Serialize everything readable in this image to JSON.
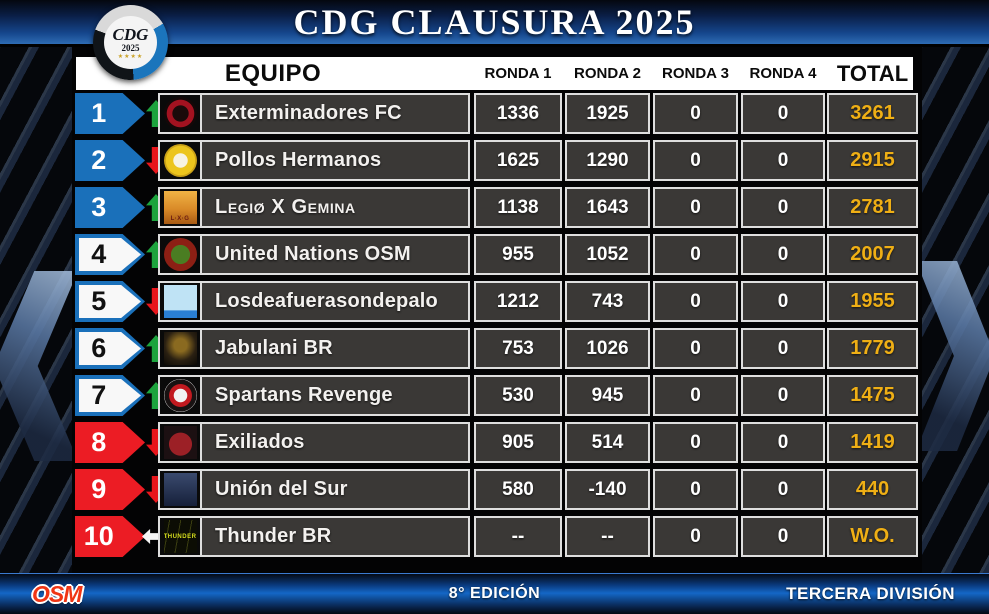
{
  "title": "CDG CLAUSURA 2025",
  "logo": {
    "acronym": "CDG",
    "year": "2025",
    "stars": "★★★★"
  },
  "columns": {
    "equipo": "EQUIPO",
    "ronda1": "RONDA 1",
    "ronda2": "RONDA 2",
    "ronda3": "RONDA 3",
    "ronda4": "RONDA 4",
    "total": "TOTAL"
  },
  "teams": [
    {
      "rank": "1",
      "badge": "badge blue",
      "arrow": "arrow up",
      "name": "Exterminadores FC",
      "name_style": "",
      "logo_style": "background:radial-gradient(circle, #1a0a0a 0 34%, #a31220 36% 58%, #140808 60%);border-radius:50%",
      "logo_text": "",
      "r1": "1336",
      "r2": "1925",
      "r3": "0",
      "r4": "0",
      "total": "3261"
    },
    {
      "rank": "2",
      "badge": "badge blue",
      "arrow": "arrow down",
      "name": "Pollos Hermanos",
      "name_style": "",
      "logo_style": "background:radial-gradient(circle, #f7f3e2 0 30%, #ecc51d 32% 62%, #caa117 64% 76%, #17120a 78%);border-radius:50%",
      "logo_text": "",
      "r1": "1625",
      "r2": "1290",
      "r3": "0",
      "r4": "0",
      "total": "2915"
    },
    {
      "rank": "3",
      "badge": "badge blue",
      "arrow": "arrow up",
      "name": "Legiø X Gemina",
      "name_style": "font-variant:small-caps;letter-spacing:.6px",
      "logo_style": "background:linear-gradient(180deg, #f0b345 0%, #d98a28 55%, #a85a14 100%);color:#6b1a10;align-items:flex-end;padding-bottom:2px",
      "logo_text": "L·X·G",
      "r1": "1138",
      "r2": "1643",
      "r3": "0",
      "r4": "0",
      "total": "2781"
    },
    {
      "rank": "4",
      "badge": "badge white",
      "arrow": "arrow up",
      "name": "United Nations OSM",
      "name_style": "",
      "logo_style": "background:radial-gradient(circle, #4a7d22 0 40%, #8c1f14 42% 86%, #0d0d0d 88%);border-radius:50%",
      "logo_text": "",
      "r1": "955",
      "r2": "1052",
      "r3": "0",
      "r4": "0",
      "total": "2007"
    },
    {
      "rank": "5",
      "badge": "badge white",
      "arrow": "arrow down",
      "name": "Losdeafuerasondepalo",
      "name_style": "",
      "logo_style": "background:linear-gradient(180deg, #bfe3f5 0 76%, #2a7fd4 78%);color:#1a3c6e",
      "logo_text": "",
      "r1": "1212",
      "r2": "743",
      "r3": "0",
      "r4": "0",
      "total": "1955"
    },
    {
      "rank": "6",
      "badge": "badge white",
      "arrow": "arrow up",
      "name": "Jabulani BR",
      "name_style": "",
      "logo_style": "background:radial-gradient(circle at 50% 40%, #8a6a20 0 25%, #2a2012 60%, #0b0906 100%)",
      "logo_text": "",
      "r1": "753",
      "r2": "1026",
      "r3": "0",
      "r4": "0",
      "total": "1779"
    },
    {
      "rank": "7",
      "badge": "badge white",
      "arrow": "arrow up",
      "name": "Spartans Revenge",
      "name_style": "",
      "logo_style": "background:radial-gradient(circle, #f2f2f2 0 28%, #c2191f 30% 48%, #181212 50% 68%, #f0f0f0 70% 80%, #101010 82%);border-radius:50%",
      "logo_text": "",
      "r1": "530",
      "r2": "945",
      "r3": "0",
      "r4": "0",
      "total": "1475"
    },
    {
      "rank": "8",
      "badge": "badge red",
      "arrow": "arrow down",
      "name": "Exiliados",
      "name_style": "",
      "logo_style": "background:radial-gradient(circle at 50% 55%, #9c2026 0 46%, #1c1012 48%)",
      "logo_text": "",
      "r1": "905",
      "r2": "514",
      "r3": "0",
      "r4": "0",
      "total": "1419"
    },
    {
      "rank": "9",
      "badge": "badge red",
      "arrow": "arrow down",
      "name": "Unión del Sur",
      "name_style": "",
      "logo_style": "background:linear-gradient(180deg,#3a4a6e 0%,#16203a 100%);color:#cfd8ea",
      "logo_text": "",
      "r1": "580",
      "r2": "-140",
      "r3": "0",
      "r4": "0",
      "total": "440"
    },
    {
      "rank": "10",
      "badge": "badge red",
      "arrow": "arrow same",
      "name": "Thunder BR",
      "name_style": "",
      "logo_style": "background:repeating-linear-gradient(100deg,#0c0d04 0 5px,#3a3d10 5px 6px,#0c0d04 6px 11px);color:#d6de1d",
      "logo_text": "THUNDER",
      "r1": "--",
      "r2": "--",
      "r3": "0",
      "r4": "0",
      "total": "W.O."
    }
  ],
  "footer": {
    "brand": "OSM",
    "edition": "8° EDICIÓN",
    "division": "TERCERA DIVISIÓN"
  },
  "colors": {
    "accent_blue": "#1a70ba",
    "accent_red": "#ec1c24",
    "gold": "#efaf15",
    "green": "#1ca33d",
    "cell_bg": "#3a3836"
  }
}
